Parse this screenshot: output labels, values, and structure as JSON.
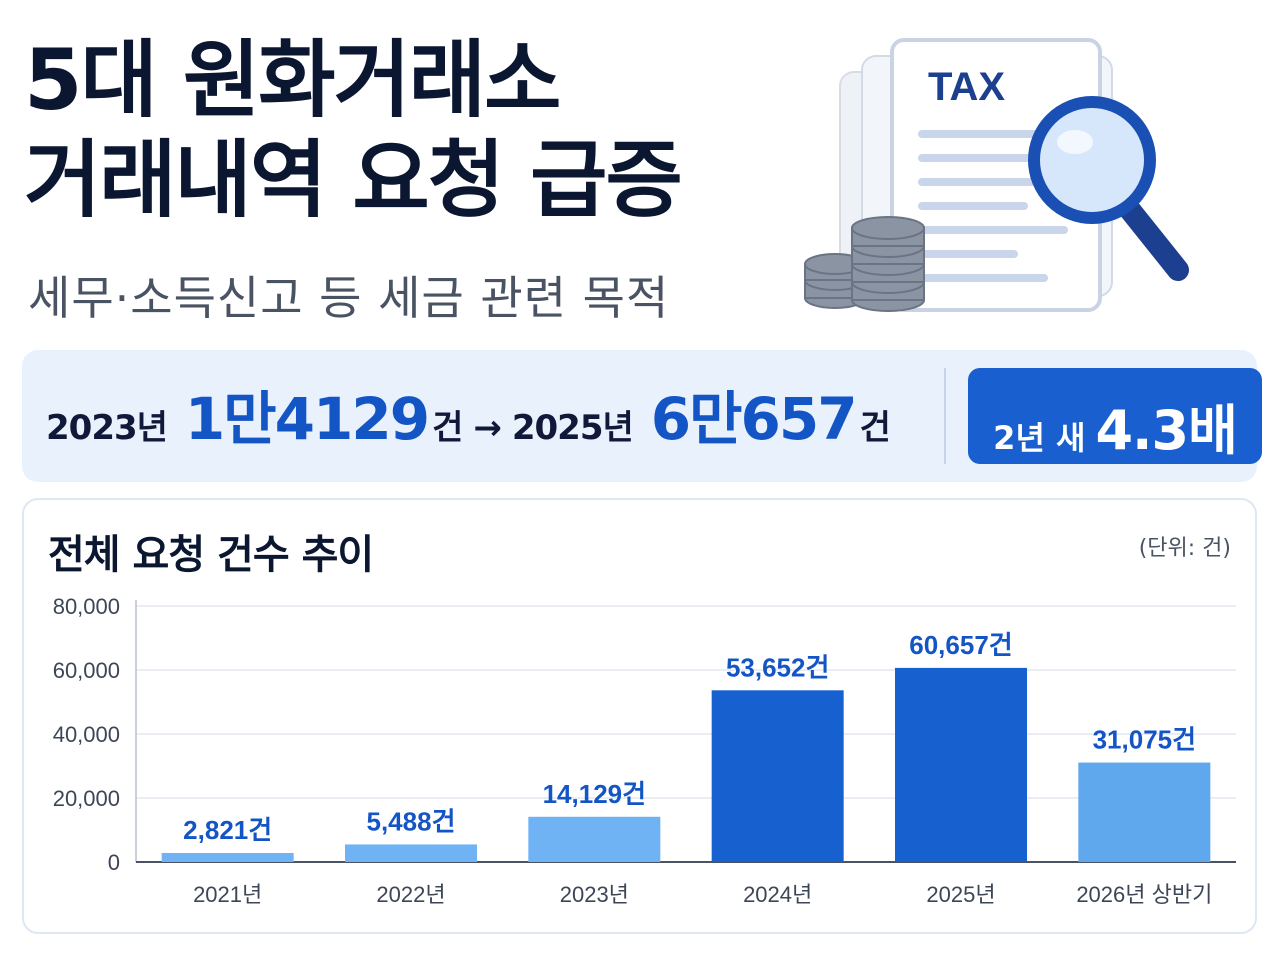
{
  "header": {
    "title_line1": "5대 원화거래소",
    "title_line2": "거래내역 요청 급증",
    "subtitle": "세무·소득신고 등 세금 관련 목적",
    "illustration_label": "TAX"
  },
  "stat": {
    "from_year": "2023년",
    "from_value": "1만4129",
    "unit": "건",
    "arrow": "→",
    "to_year": "2025년",
    "to_value": "6만657",
    "ratio_label": "2년 새",
    "ratio_value": "4.3배"
  },
  "chart_data": {
    "type": "bar",
    "title": "전체 요청 건수 추이",
    "unit_note": "(단위: 건)",
    "categories": [
      "2021년",
      "2022년",
      "2023년",
      "2024년",
      "2025년",
      "2026년 상반기"
    ],
    "values": [
      2821,
      5488,
      14129,
      53652,
      60657,
      31075
    ],
    "value_labels": [
      "2,821건",
      "5,488건",
      "14,129건",
      "53,652건",
      "60,657건",
      "31,075건"
    ],
    "ylim": [
      0,
      80000
    ],
    "yticks": [
      0,
      20000,
      40000,
      60000,
      80000
    ],
    "ytick_labels": [
      "0",
      "20,000",
      "40,000",
      "60,000",
      "80,000"
    ],
    "bar_colors": [
      "#6fb3f5",
      "#6fb3f5",
      "#6fb3f5",
      "#1760cf",
      "#1760cf",
      "#5fa8ee"
    ],
    "value_label_color": "#1455c6",
    "grid": true
  },
  "colors": {
    "accent": "#1455c6",
    "badge": "#1a5fcf",
    "banner": "#e9f1fc"
  }
}
